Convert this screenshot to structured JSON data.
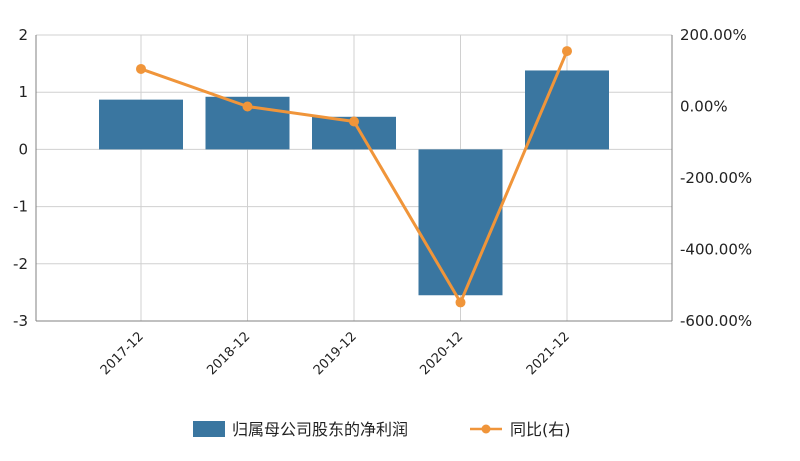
{
  "chart_data": {
    "type": "bar+line",
    "categories": [
      "2017-12",
      "2018-12",
      "2019-12",
      "2020-12",
      "2021-12"
    ],
    "series": [
      {
        "name": "归属母公司股东的净利润",
        "type": "bar",
        "axis": "left",
        "values": [
          0.87,
          0.92,
          0.57,
          -2.55,
          1.38
        ],
        "color": "#3a76a0"
      },
      {
        "name": "同比(右)",
        "type": "line",
        "axis": "right",
        "values": [
          105,
          0,
          -42,
          -548,
          155
        ],
        "color": "#f0953a"
      }
    ],
    "y_left": {
      "lim": [
        -3,
        2
      ],
      "ticks": [
        "-3",
        "-2",
        "-1",
        "0",
        "1",
        "2"
      ],
      "tick_values": [
        -3,
        -2,
        -1,
        0,
        1,
        2
      ]
    },
    "y_right": {
      "lim": [
        -600,
        200
      ],
      "ticks": [
        "-600.00%",
        "-400.00%",
        "-200.00%",
        "0.00%",
        "200.00%"
      ],
      "tick_values": [
        -600,
        -400,
        -200,
        0,
        200
      ]
    },
    "grid": true,
    "legend": "bottom"
  }
}
